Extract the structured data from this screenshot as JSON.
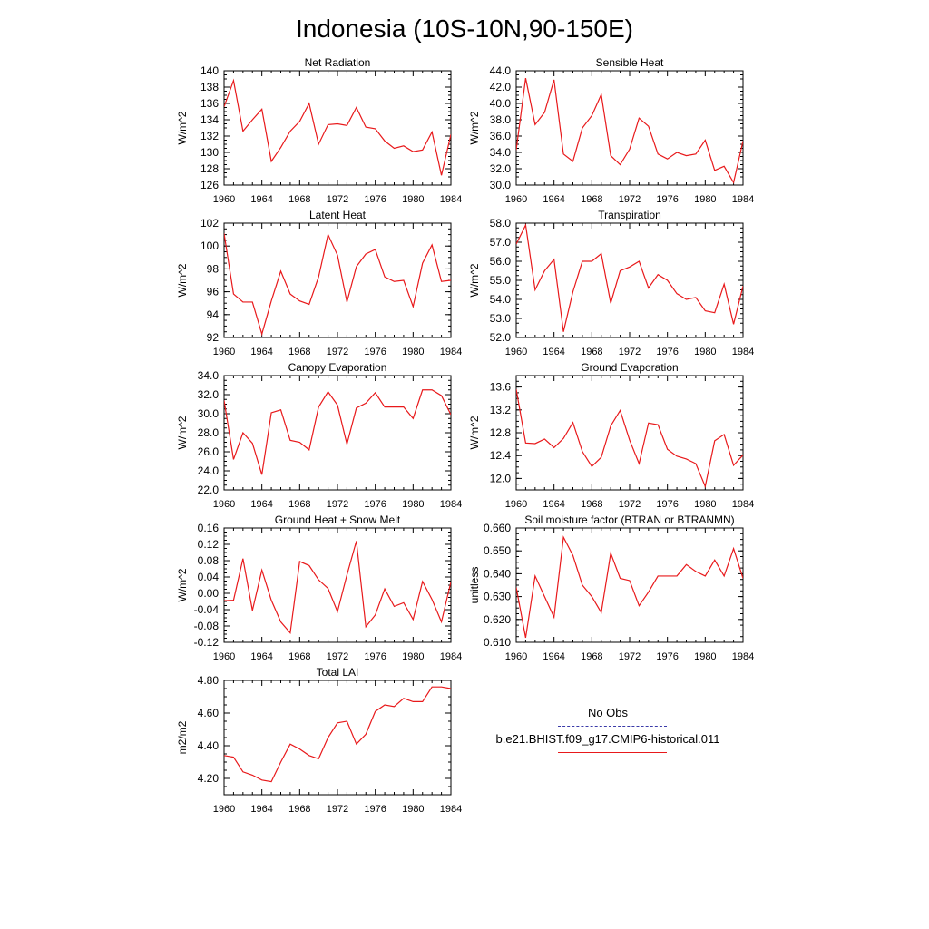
{
  "title": "Indonesia (10S-10N,90-150E)",
  "x_ticks": [
    1960,
    1964,
    1968,
    1972,
    1976,
    1980,
    1984
  ],
  "colors": {
    "model": "#e8191b",
    "obs": "#3a3aa8",
    "axis": "#000000"
  },
  "legend": {
    "obs_label": "No Obs",
    "model_label": "b.e21.BHIST.f09_g17.CMIP6-historical.011"
  },
  "chart_data": [
    {
      "type": "line",
      "title": "Net Radiation",
      "ylabel": "W/m^2",
      "ylim": [
        126,
        140
      ],
      "yticks": [
        "126",
        "128",
        "130",
        "132",
        "134",
        "136",
        "138",
        "140"
      ],
      "x": [
        1960,
        1961,
        1962,
        1963,
        1964,
        1965,
        1966,
        1967,
        1968,
        1969,
        1970,
        1971,
        1972,
        1973,
        1974,
        1975,
        1976,
        1977,
        1978,
        1979,
        1980,
        1981,
        1982,
        1983,
        1984
      ],
      "series": [
        {
          "values": [
            135.6,
            138.8,
            132.6,
            134.0,
            135.3,
            128.9,
            130.6,
            132.6,
            133.8,
            136.0,
            131.0,
            133.4,
            133.5,
            133.3,
            135.5,
            133.1,
            132.9,
            131.4,
            130.5,
            130.8,
            130.1,
            130.3,
            132.5,
            127.2,
            132.2
          ]
        }
      ]
    },
    {
      "type": "line",
      "title": "Sensible Heat",
      "ylabel": "W/m^2",
      "ylim": [
        30.0,
        44.0
      ],
      "yticks": [
        "30.0",
        "32.0",
        "34.0",
        "36.0",
        "38.0",
        "40.0",
        "42.0",
        "44.0"
      ],
      "x": [
        1960,
        1961,
        1962,
        1963,
        1964,
        1965,
        1966,
        1967,
        1968,
        1969,
        1970,
        1971,
        1972,
        1973,
        1974,
        1975,
        1976,
        1977,
        1978,
        1979,
        1980,
        1981,
        1982,
        1983,
        1984
      ],
      "series": [
        {
          "values": [
            34.3,
            43.1,
            37.4,
            38.9,
            42.9,
            33.8,
            32.9,
            37.0,
            38.5,
            41.1,
            33.6,
            32.5,
            34.4,
            38.2,
            37.2,
            33.8,
            33.2,
            34.0,
            33.6,
            33.8,
            35.5,
            31.8,
            32.3,
            30.3,
            35.4
          ]
        }
      ]
    },
    {
      "type": "line",
      "title": "Latent Heat",
      "ylabel": "W/m^2",
      "ylim": [
        92,
        102
      ],
      "yticks": [
        "92",
        "94",
        "96",
        "98",
        "100",
        "102"
      ],
      "x": [
        1960,
        1961,
        1962,
        1963,
        1964,
        1965,
        1966,
        1967,
        1968,
        1969,
        1970,
        1971,
        1972,
        1973,
        1974,
        1975,
        1976,
        1977,
        1978,
        1979,
        1980,
        1981,
        1982,
        1983,
        1984
      ],
      "series": [
        {
          "values": [
            101.1,
            95.8,
            95.1,
            95.1,
            92.3,
            95.2,
            97.8,
            95.8,
            95.2,
            94.9,
            97.3,
            101.0,
            99.2,
            95.1,
            98.2,
            99.3,
            99.7,
            97.3,
            96.9,
            97.0,
            94.7,
            98.5,
            100.1,
            96.9,
            97.0
          ]
        }
      ]
    },
    {
      "type": "line",
      "title": "Transpiration",
      "ylabel": "W/m^2",
      "ylim": [
        52.0,
        58.0
      ],
      "yticks": [
        "52.0",
        "53.0",
        "54.0",
        "55.0",
        "56.0",
        "57.0",
        "58.0"
      ],
      "x": [
        1960,
        1961,
        1962,
        1963,
        1964,
        1965,
        1966,
        1967,
        1968,
        1969,
        1970,
        1971,
        1972,
        1973,
        1974,
        1975,
        1976,
        1977,
        1978,
        1979,
        1980,
        1981,
        1982,
        1983,
        1984
      ],
      "series": [
        {
          "values": [
            56.9,
            57.9,
            54.5,
            55.5,
            56.1,
            52.3,
            54.4,
            56.0,
            56.0,
            56.4,
            53.8,
            55.5,
            55.7,
            56.0,
            54.6,
            55.3,
            55.0,
            54.3,
            54.0,
            54.1,
            53.4,
            53.3,
            54.8,
            52.7,
            54.7
          ]
        }
      ]
    },
    {
      "type": "line",
      "title": "Canopy Evaporation",
      "ylabel": "W/m^2",
      "ylim": [
        22.0,
        34.0
      ],
      "yticks": [
        "22.0",
        "24.0",
        "26.0",
        "28.0",
        "30.0",
        "32.0",
        "34.0"
      ],
      "x": [
        1960,
        1961,
        1962,
        1963,
        1964,
        1965,
        1966,
        1967,
        1968,
        1969,
        1970,
        1971,
        1972,
        1973,
        1974,
        1975,
        1976,
        1977,
        1978,
        1979,
        1980,
        1981,
        1982,
        1983,
        1984
      ],
      "series": [
        {
          "values": [
            31.4,
            25.2,
            28.0,
            26.9,
            23.6,
            30.1,
            30.4,
            27.2,
            27.0,
            26.2,
            30.7,
            32.3,
            30.9,
            26.8,
            30.6,
            31.1,
            32.2,
            30.7,
            30.7,
            30.7,
            29.5,
            32.5,
            32.5,
            31.9,
            29.9
          ]
        }
      ]
    },
    {
      "type": "line",
      "title": "Ground Evaporation",
      "ylabel": "W/m^2",
      "ylim": [
        11.8,
        13.8
      ],
      "yticks": [
        "12.0",
        "12.4",
        "12.8",
        "13.2",
        "13.6"
      ],
      "x": [
        1960,
        1961,
        1962,
        1963,
        1964,
        1965,
        1966,
        1967,
        1968,
        1969,
        1970,
        1971,
        1972,
        1973,
        1974,
        1975,
        1976,
        1977,
        1978,
        1979,
        1980,
        1981,
        1982,
        1983,
        1984
      ],
      "series": [
        {
          "values": [
            13.56,
            12.62,
            12.61,
            12.69,
            12.54,
            12.7,
            12.98,
            12.47,
            12.21,
            12.37,
            12.92,
            13.19,
            12.67,
            12.26,
            12.97,
            12.94,
            12.51,
            12.39,
            12.34,
            12.26,
            11.86,
            12.66,
            12.77,
            12.23,
            12.41
          ]
        }
      ]
    },
    {
      "type": "line",
      "title": "Ground Heat + Snow Melt",
      "ylabel": "W/m^2",
      "ylim": [
        -0.12,
        0.16
      ],
      "yticks": [
        "-0.12",
        "-0.08",
        "-0.04",
        "0.00",
        "0.04",
        "0.08",
        "0.12",
        "0.16"
      ],
      "x": [
        1960,
        1961,
        1962,
        1963,
        1964,
        1965,
        1966,
        1967,
        1968,
        1969,
        1970,
        1971,
        1972,
        1973,
        1974,
        1975,
        1976,
        1977,
        1978,
        1979,
        1980,
        1981,
        1982,
        1983,
        1984
      ],
      "series": [
        {
          "values": [
            -0.018,
            -0.017,
            0.085,
            -0.042,
            0.057,
            -0.017,
            -0.07,
            -0.097,
            0.078,
            0.068,
            0.033,
            0.012,
            -0.045,
            0.045,
            0.128,
            -0.082,
            -0.053,
            0.011,
            -0.032,
            -0.023,
            -0.064,
            0.029,
            -0.015,
            -0.07,
            0.028
          ]
        }
      ]
    },
    {
      "type": "line",
      "title": "Soil moisture factor (BTRAN or BTRANMN)",
      "ylabel": "unitless",
      "ylim": [
        0.61,
        0.66
      ],
      "yticks": [
        "0.610",
        "0.620",
        "0.630",
        "0.640",
        "0.650",
        "0.660"
      ],
      "x": [
        1960,
        1961,
        1962,
        1963,
        1964,
        1965,
        1966,
        1967,
        1968,
        1969,
        1970,
        1971,
        1972,
        1973,
        1974,
        1975,
        1976,
        1977,
        1978,
        1979,
        1980,
        1981,
        1982,
        1983,
        1984
      ],
      "series": [
        {
          "values": [
            0.634,
            0.612,
            0.639,
            0.63,
            0.621,
            0.656,
            0.648,
            0.635,
            0.63,
            0.623,
            0.649,
            0.638,
            0.637,
            0.626,
            0.632,
            0.639,
            0.639,
            0.639,
            0.644,
            0.641,
            0.639,
            0.646,
            0.639,
            0.651,
            0.638
          ]
        }
      ]
    },
    {
      "type": "line",
      "title": "Total LAI",
      "ylabel": "m2/m2",
      "ylim": [
        4.1,
        4.8
      ],
      "yticks": [
        "4.20",
        "4.40",
        "4.60",
        "4.80"
      ],
      "x": [
        1960,
        1961,
        1962,
        1963,
        1964,
        1965,
        1966,
        1967,
        1968,
        1969,
        1970,
        1971,
        1972,
        1973,
        1974,
        1975,
        1976,
        1977,
        1978,
        1979,
        1980,
        1981,
        1982,
        1983,
        1984
      ],
      "series": [
        {
          "values": [
            4.34,
            4.33,
            4.24,
            4.22,
            4.19,
            4.18,
            4.3,
            4.41,
            4.38,
            4.34,
            4.32,
            4.45,
            4.54,
            4.55,
            4.41,
            4.47,
            4.61,
            4.65,
            4.64,
            4.69,
            4.67,
            4.67,
            4.76,
            4.76,
            4.75
          ]
        }
      ]
    }
  ]
}
